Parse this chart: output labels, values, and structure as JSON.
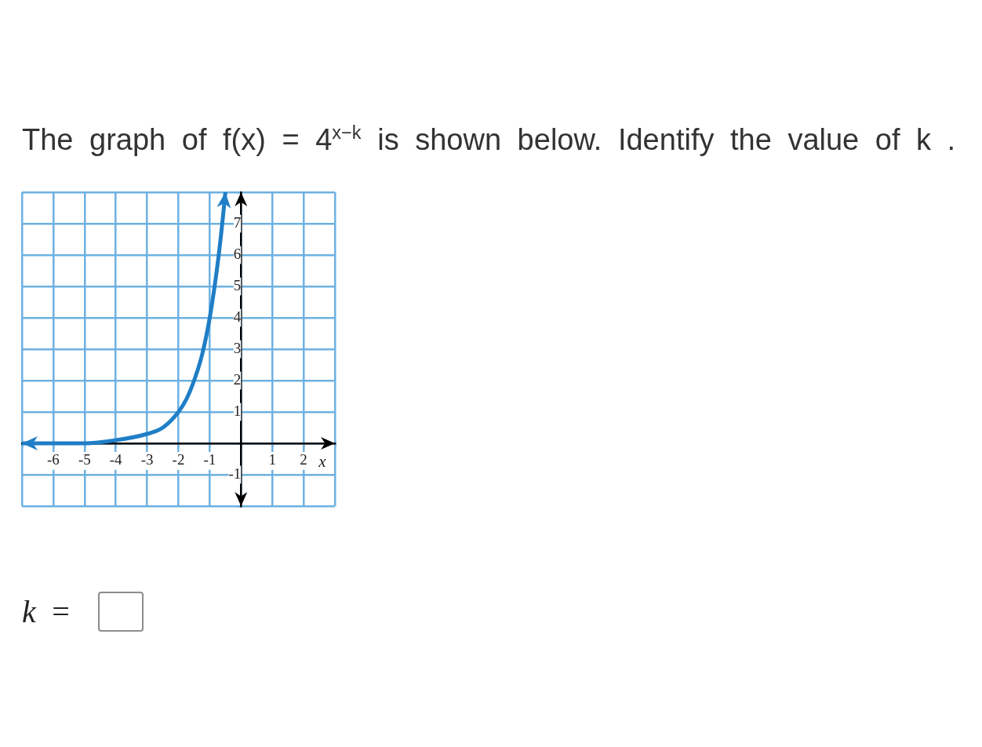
{
  "chart_data": {
    "type": "line",
    "title": "The graph of f(x) = 4$^{x−k}$ is shown below. Identify the value of k .",
    "xlabel": "x",
    "x": [
      -7,
      -6,
      -5,
      -4,
      -3,
      -2.5,
      -2,
      -1.75,
      -1.5,
      -1.25,
      -1,
      -0.75,
      -0.6,
      -0.5
    ],
    "series": [
      {
        "color": "#1f7ec6",
        "values": [
          0,
          0,
          0,
          0.1,
          0.3,
          0.5,
          1,
          1.4,
          2,
          2.8,
          4,
          5.7,
          7,
          8
        ]
      }
    ],
    "xlim": [
      -7,
      3
    ],
    "xticks": [
      {
        "value": -7,
        "label": null
      },
      -6,
      -5,
      -4,
      -3,
      -2,
      -1,
      {
        "value": 0,
        "label": null
      },
      1,
      2,
      {
        "value": 3,
        "label": null
      }
    ],
    "ylim": [
      -2,
      8
    ],
    "yticks": [
      {
        "value": -2,
        "label": null
      },
      -1,
      {
        "value": 0,
        "label": null
      },
      1,
      2,
      3,
      4,
      5,
      6,
      7,
      {
        "value": 8,
        "label": null
      }
    ],
    "grid": true,
    "legend": false,
    "marker": "none",
    "line_style": "solid",
    "annotations": [
      "k ="
    ]
  }
}
